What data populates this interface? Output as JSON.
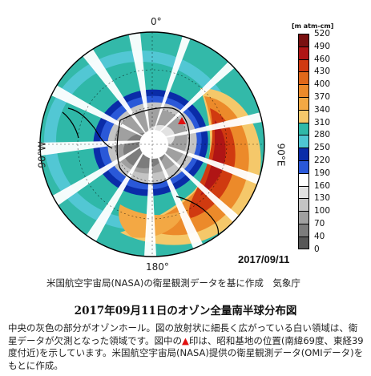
{
  "map": {
    "lon_top": "0°",
    "lon_bottom": "180°",
    "lon_left": "90°W",
    "lon_right": "90°E",
    "date": "2017/09/11",
    "station_marker": "red-triangle"
  },
  "colorbar": {
    "unit": "[m atm-cm]",
    "ticks": [
      "520",
      "490",
      "460",
      "430",
      "400",
      "370",
      "340",
      "310",
      "280",
      "250",
      "220",
      "190",
      "160",
      "130",
      "100",
      "70",
      "40",
      "0"
    ],
    "colors": [
      "#7a1010",
      "#b01515",
      "#d03a10",
      "#e0681a",
      "#ec8a2a",
      "#f3a844",
      "#f5c86a",
      "#2fb8a8",
      "#4ec6d2",
      "#0a2ca8",
      "#2a58d8",
      "#ffffff",
      "#e2e2e2",
      "#c4c4c4",
      "#a0a0a0",
      "#7c7c7c",
      "#585858"
    ]
  },
  "credit": "米国航空宇宙局(NASA)の衛星観測データを基に作成　気象庁",
  "title": "2017年09月11日のオゾン全量南半球分布図",
  "caption": {
    "part1": "中央の灰色の部分がオゾンホール。図の放射状に細長く広がっている白い領域は、衛星データが欠測となった領域です。図中の",
    "marker": "▲",
    "part2": "印は、昭和基地の位置(南緯69度、東経39度付近)を示しています。米国航空宇宙局(NASA)提供の衛星観測データ(OMIデータ)をもとに作成。"
  }
}
